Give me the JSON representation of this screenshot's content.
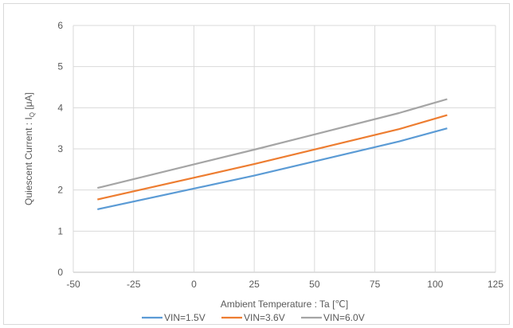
{
  "chart_data": {
    "type": "line",
    "xlabel": "Ambient Temperature : Ta [℃]",
    "ylabel_main": "Quiescent Current : I",
    "ylabel_sub": "Q",
    "ylabel_unit": " [μA]",
    "xlim": [
      -50,
      125
    ],
    "ylim": [
      0,
      6
    ],
    "x_ticks": [
      -50,
      -25,
      0,
      25,
      50,
      75,
      100,
      125
    ],
    "y_ticks": [
      0,
      1,
      2,
      3,
      4,
      5,
      6
    ],
    "grid": true,
    "legend_position": "bottom",
    "x": [
      -40,
      25,
      85,
      105
    ],
    "series": [
      {
        "name": "VIN=1.5V",
        "color": "#5b9bd5",
        "values": [
          1.53,
          2.35,
          3.18,
          3.5
        ]
      },
      {
        "name": "VIN=3.6V",
        "color": "#ed7d31",
        "values": [
          1.77,
          2.63,
          3.48,
          3.82
        ]
      },
      {
        "name": "VIN=6.0V",
        "color": "#a5a5a5",
        "values": [
          2.05,
          2.98,
          3.87,
          4.21
        ]
      }
    ]
  }
}
